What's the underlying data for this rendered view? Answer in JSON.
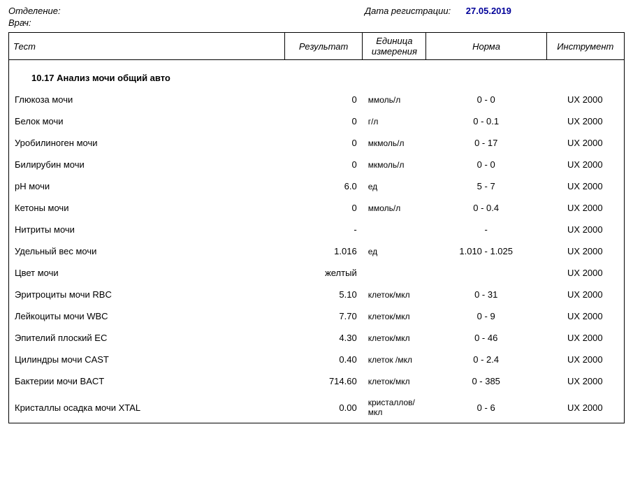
{
  "header": {
    "dept_label": "Отделение:",
    "reg_date_label": "Дата регистрации:",
    "reg_date_value": "27.05.2019",
    "doctor_label": "Врач:"
  },
  "columns": {
    "test": "Тест",
    "result": "Результат",
    "unit": "Единица измерения",
    "norm": "Норма",
    "instrument": "Инструмент"
  },
  "section_title": "10.17 Анализ мочи общий авто",
  "rows": [
    {
      "test": "Глюкоза мочи",
      "result": "0",
      "unit": "ммоль/л",
      "norm": "0 - 0",
      "instr": "UX 2000"
    },
    {
      "test": "Белок мочи",
      "result": "0",
      "unit": "г/л",
      "norm": "0 - 0.1",
      "instr": "UX 2000"
    },
    {
      "test": "Уробилиноген мочи",
      "result": "0",
      "unit": "мкмоль/л",
      "norm": "0 - 17",
      "instr": "UX 2000"
    },
    {
      "test": "Билирубин мочи",
      "result": "0",
      "unit": "мкмоль/л",
      "norm": "0 - 0",
      "instr": "UX 2000"
    },
    {
      "test": "pH мочи",
      "result": "6.0",
      "unit": "ед",
      "norm": "5 - 7",
      "instr": "UX 2000"
    },
    {
      "test": "Кетоны мочи",
      "result": "0",
      "unit": "ммоль/л",
      "norm": "0 - 0.4",
      "instr": "UX 2000"
    },
    {
      "test": "Нитриты мочи",
      "result": "-",
      "unit": "",
      "norm": "-",
      "instr": "UX 2000"
    },
    {
      "test": "Удельный вес мочи",
      "result": "1.016",
      "unit": "ед",
      "norm": "1.010 - 1.025",
      "instr": "UX 2000"
    },
    {
      "test": "Цвет мочи",
      "result": "желтый",
      "unit": "",
      "norm": "",
      "instr": "UX 2000"
    },
    {
      "test": "Эритроциты мочи RBC",
      "result": "5.10",
      "unit": "клеток/мкл",
      "norm": "0 - 31",
      "instr": "UX 2000"
    },
    {
      "test": "Лейкоциты мочи WBC",
      "result": "7.70",
      "unit": "клеток/мкл",
      "norm": "0 - 9",
      "instr": "UX 2000"
    },
    {
      "test": "Эпителий плоский EC",
      "result": "4.30",
      "unit": "клеток/мкл",
      "norm": "0 - 46",
      "instr": "UX 2000"
    },
    {
      "test": "Цилиндры мочи CAST",
      "result": "0.40",
      "unit": "клеток /мкл",
      "norm": "0 - 2.4",
      "instr": "UX 2000"
    },
    {
      "test": "Бактерии мочи BACT",
      "result": "714.60",
      "unit": "клеток/мкл",
      "norm": "0 - 385",
      "instr": "UX 2000"
    },
    {
      "test": "Кристаллы осадка мочи XTAL",
      "result": "0.00",
      "unit": "кристаллов/мкл",
      "norm": "0 - 6",
      "instr": "UX 2000"
    }
  ],
  "colors": {
    "text": "#000000",
    "accent_blue": "#000099",
    "row_border": "#999999",
    "outer_border": "#000000",
    "background": "#ffffff"
  },
  "typography": {
    "base_fontsize_pt": 10,
    "section_bold": true,
    "header_italic": true
  }
}
